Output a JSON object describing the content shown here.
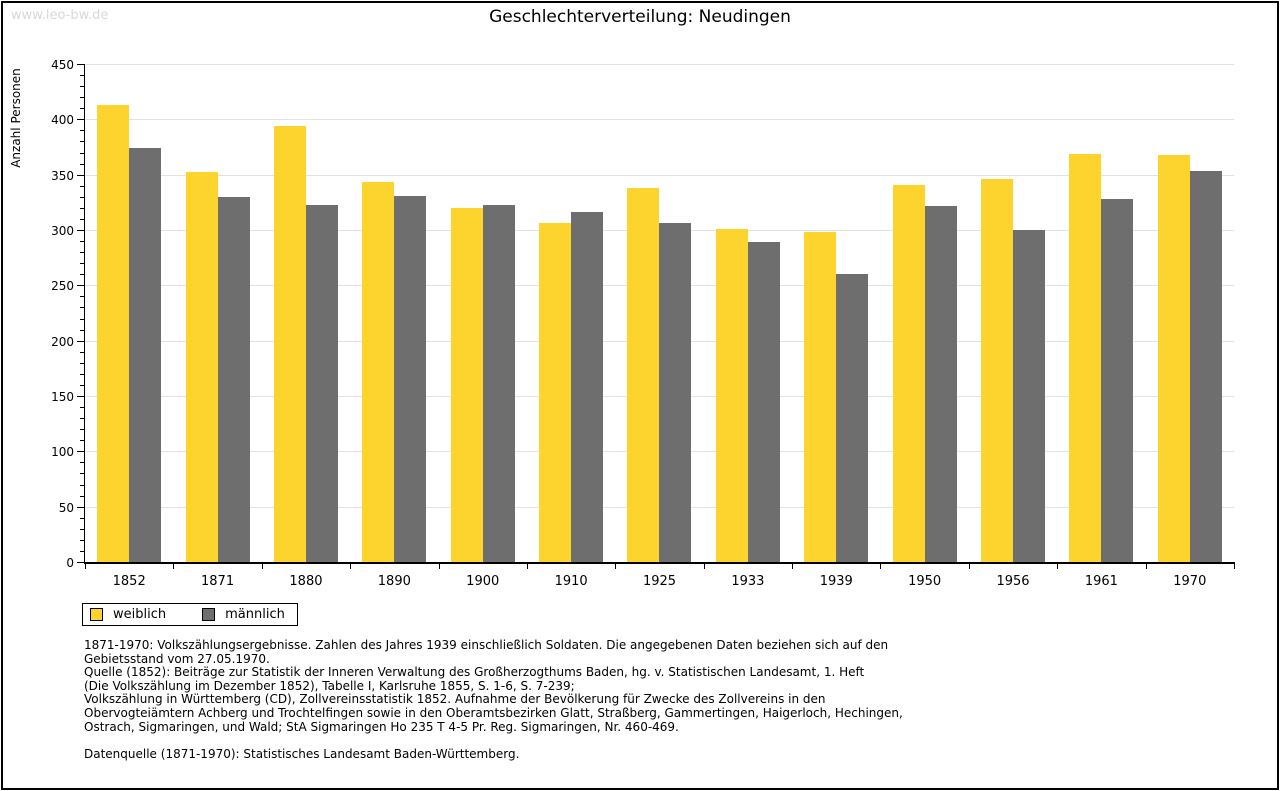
{
  "watermark": "www.leo-bw.de",
  "title": "Geschlechterverteilung: Neudingen",
  "chart_data": {
    "type": "bar",
    "title": "Geschlechterverteilung: Neudingen",
    "categories": [
      "1852",
      "1871",
      "1880",
      "1890",
      "1900",
      "1910",
      "1925",
      "1933",
      "1939",
      "1950",
      "1956",
      "1961",
      "1970"
    ],
    "series": [
      {
        "name": "weiblich",
        "color": "#fcd42d",
        "values": [
          413,
          352,
          394,
          343,
          320,
          306,
          338,
          301,
          298,
          341,
          346,
          369,
          368
        ]
      },
      {
        "name": "männlich",
        "color": "#6e6e6e",
        "values": [
          374,
          330,
          323,
          331,
          323,
          316,
          306,
          289,
          260,
          322,
          300,
          328,
          353
        ]
      }
    ],
    "xlabel": "",
    "ylabel": "Anzahl Personen",
    "ylim": [
      0,
      450
    ],
    "ytick_step": 50,
    "yminor_step": 10,
    "grid": true,
    "legend_position": "bottom-left",
    "gridline_color": "#e2e2e2"
  },
  "footnotes": [
    "1871-1970: Volkszählungsergebnisse. Zahlen des Jahres 1939 einschließlich Soldaten. Die angegebenen Daten beziehen sich auf den",
    "Gebietsstand vom 27.05.1970.",
    "Quelle (1852): Beiträge zur Statistik der Inneren Verwaltung des Großherzogthums Baden, hg. v. Statistischen Landesamt, 1. Heft",
    "(Die Volkszählung im Dezember 1852), Tabelle I, Karlsruhe 1855, S. 1-6, S. 7-239;",
    "Volkszählung in Württemberg (CD), Zollvereinsstatistik 1852. Aufnahme der Bevölkerung für Zwecke des Zollvereins in den",
    "Obervogteiämtern Achberg und Trochtelfingen sowie in den Oberamtsbezirken Glatt, Straßberg, Gammertingen, Haigerloch, Hechingen,",
    "Ostrach, Sigmaringen, und Wald; StA Sigmaringen Ho 235 T 4-5 Pr. Reg. Sigmaringen, Nr. 460-469.",
    "",
    "Datenquelle (1871-1970): Statistisches Landesamt Baden-Württemberg."
  ]
}
